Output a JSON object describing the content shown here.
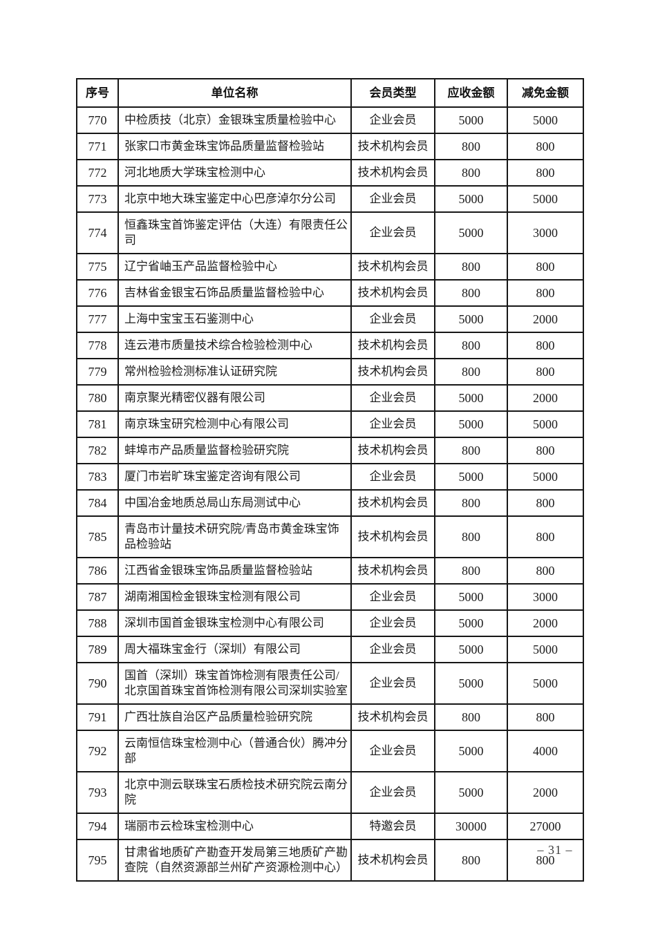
{
  "table": {
    "columns": [
      "序号",
      "单位名称",
      "会员类型",
      "应收金额",
      "减免金额"
    ],
    "rows": [
      {
        "serial": "770",
        "name": "中检质技（北京）金银珠宝质量检验中心",
        "type": "企业会员",
        "receivable": "5000",
        "reduction": "5000"
      },
      {
        "serial": "771",
        "name": "张家口市黄金珠宝饰品质量监督检验站",
        "type": "技术机构会员",
        "receivable": "800",
        "reduction": "800"
      },
      {
        "serial": "772",
        "name": "河北地质大学珠宝检测中心",
        "type": "技术机构会员",
        "receivable": "800",
        "reduction": "800"
      },
      {
        "serial": "773",
        "name": "北京中地大珠宝鉴定中心巴彦淖尔分公司",
        "type": "企业会员",
        "receivable": "5000",
        "reduction": "5000"
      },
      {
        "serial": "774",
        "name": "恒鑫珠宝首饰鉴定评估（大连）有限责任公司",
        "type": "企业会员",
        "receivable": "5000",
        "reduction": "3000"
      },
      {
        "serial": "775",
        "name": "辽宁省岫玉产品监督检验中心",
        "type": "技术机构会员",
        "receivable": "800",
        "reduction": "800"
      },
      {
        "serial": "776",
        "name": "吉林省金银宝石饰品质量监督检验中心",
        "type": "技术机构会员",
        "receivable": "800",
        "reduction": "800"
      },
      {
        "serial": "777",
        "name": "上海中宝宝玉石鉴测中心",
        "type": "企业会员",
        "receivable": "5000",
        "reduction": "2000"
      },
      {
        "serial": "778",
        "name": "连云港市质量技术综合检验检测中心",
        "type": "技术机构会员",
        "receivable": "800",
        "reduction": "800"
      },
      {
        "serial": "779",
        "name": "常州检验检测标准认证研究院",
        "type": "技术机构会员",
        "receivable": "800",
        "reduction": "800"
      },
      {
        "serial": "780",
        "name": "南京聚光精密仪器有限公司",
        "type": "企业会员",
        "receivable": "5000",
        "reduction": "2000"
      },
      {
        "serial": "781",
        "name": "南京珠宝研究检测中心有限公司",
        "type": "企业会员",
        "receivable": "5000",
        "reduction": "5000"
      },
      {
        "serial": "782",
        "name": "蚌埠市产品质量监督检验研究院",
        "type": "技术机构会员",
        "receivable": "800",
        "reduction": "800"
      },
      {
        "serial": "783",
        "name": "厦门市岩旷珠宝鉴定咨询有限公司",
        "type": "企业会员",
        "receivable": "5000",
        "reduction": "5000"
      },
      {
        "serial": "784",
        "name": "中国冶金地质总局山东局测试中心",
        "type": "技术机构会员",
        "receivable": "800",
        "reduction": "800"
      },
      {
        "serial": "785",
        "name": "青岛市计量技术研究院/青岛市黄金珠宝饰品检验站",
        "type": "技术机构会员",
        "receivable": "800",
        "reduction": "800"
      },
      {
        "serial": "786",
        "name": "江西省金银珠宝饰品质量监督检验站",
        "type": "技术机构会员",
        "receivable": "800",
        "reduction": "800"
      },
      {
        "serial": "787",
        "name": "湖南湘国检金银珠宝检测有限公司",
        "type": "企业会员",
        "receivable": "5000",
        "reduction": "3000"
      },
      {
        "serial": "788",
        "name": "深圳市国首金银珠宝检测中心有限公司",
        "type": "企业会员",
        "receivable": "5000",
        "reduction": "2000"
      },
      {
        "serial": "789",
        "name": "周大福珠宝金行（深圳）有限公司",
        "type": "企业会员",
        "receivable": "5000",
        "reduction": "5000"
      },
      {
        "serial": "790",
        "name": "国首（深圳）珠宝首饰检测有限责任公司/北京国首珠宝首饰检测有限公司深圳实验室",
        "type": "企业会员",
        "receivable": "5000",
        "reduction": "5000"
      },
      {
        "serial": "791",
        "name": "广西壮族自治区产品质量检验研究院",
        "type": "技术机构会员",
        "receivable": "800",
        "reduction": "800"
      },
      {
        "serial": "792",
        "name": "云南恒信珠宝检测中心（普通合伙）腾冲分部",
        "type": "企业会员",
        "receivable": "5000",
        "reduction": "4000"
      },
      {
        "serial": "793",
        "name": "北京中测云联珠宝石质检技术研究院云南分院",
        "type": "企业会员",
        "receivable": "5000",
        "reduction": "2000"
      },
      {
        "serial": "794",
        "name": "瑞丽市云检珠宝检测中心",
        "type": "特邀会员",
        "receivable": "30000",
        "reduction": "27000"
      },
      {
        "serial": "795",
        "name": "甘肃省地质矿产勘查开发局第三地质矿产勘查院（自然资源部兰州矿产资源检测中心）",
        "type": "技术机构会员",
        "receivable": "800",
        "reduction": "800"
      }
    ]
  },
  "pagination": {
    "page_label": "– 31 –"
  }
}
